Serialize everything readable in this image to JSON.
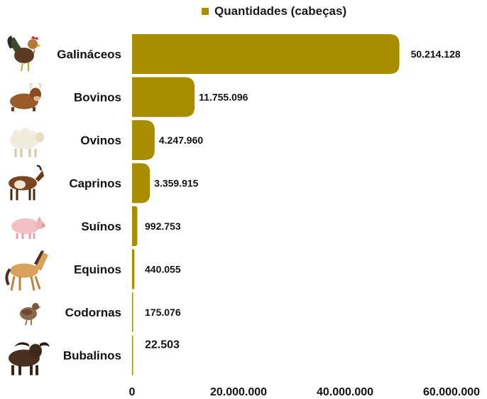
{
  "chart_data": {
    "type": "bar",
    "orientation": "horizontal",
    "categories": [
      "Galináceos",
      "Bovinos",
      "Ovinos",
      "Caprinos",
      "Suínos",
      "Equinos",
      "Codornas",
      "Bubalinos"
    ],
    "category_icons": [
      "rooster-icon",
      "cow-icon",
      "sheep-icon",
      "goat-icon",
      "pig-icon",
      "horse-icon",
      "quail-icon",
      "buffalo-icon"
    ],
    "series": [
      {
        "name": "Quantidades (cabeças)",
        "values": [
          50214128,
          11755096,
          4247960,
          3359915,
          992753,
          440055,
          175076,
          22503
        ],
        "labels": [
          "50.214.128",
          "11.755.096",
          "4.247.960",
          "3.359.915",
          "992.753",
          "440.055",
          "175.076",
          "22.503"
        ]
      }
    ],
    "xlim": [
      0,
      60000000
    ],
    "xticks": [
      0,
      20000000,
      40000000,
      60000000
    ],
    "xtick_labels": [
      "0",
      "20.000.000",
      "40.000.000",
      "60.000.000"
    ],
    "grid": false,
    "legend_position": "top",
    "colors": {
      "bar": "#a98d00",
      "text": "#111111"
    }
  }
}
